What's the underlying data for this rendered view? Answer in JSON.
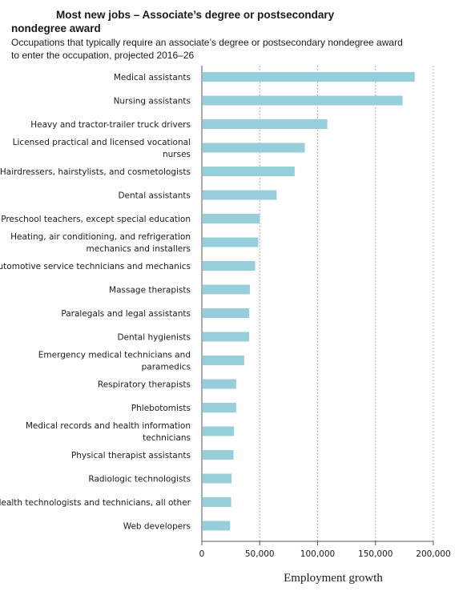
{
  "chart_data": {
    "type": "bar",
    "orientation": "horizontal",
    "title_line1": "Most new jobs – Associate’s degree or postsecondary",
    "title_line2": "nondegree award",
    "subtitle_line1": "Occupations that typically require an associate’s degree or postsecondary nondegree award",
    "subtitle_line2": "to enter the occupation, projected 2016–26",
    "xlabel": "Employment growth",
    "xlim": [
      0,
      200000
    ],
    "xticks": [
      0,
      50000,
      100000,
      150000,
      200000
    ],
    "xtick_labels": [
      "0",
      "50,000",
      "100,000",
      "150,000",
      "200,000"
    ],
    "grid": "vertical dotted",
    "bar_color": "#95cfdc",
    "categories": [
      [
        "Medical assistants"
      ],
      [
        "Nursing assistants"
      ],
      [
        "Heavy and tractor-trailer truck drivers"
      ],
      [
        "Licensed practical and licensed vocational",
        "nurses"
      ],
      [
        "Hairdressers, hairstylists, and cosmetologists"
      ],
      [
        "Dental assistants"
      ],
      [
        "Preschool teachers, except special education"
      ],
      [
        "Heating, air conditioning, and refrigeration",
        "mechanics and installers"
      ],
      [
        "Automotive service technicians and mechanics"
      ],
      [
        "Massage therapists"
      ],
      [
        "Paralegals and legal assistants"
      ],
      [
        "Dental hygienists"
      ],
      [
        "Emergency medical technicians and",
        "paramedics"
      ],
      [
        "Respiratory therapists"
      ],
      [
        "Phlebotomists"
      ],
      [
        "Medical records and health information",
        "technicians"
      ],
      [
        "Physical therapist assistants"
      ],
      [
        "Radiologic technologists"
      ],
      [
        "Health technologists and technicians, all other"
      ],
      [
        "Web developers"
      ]
    ],
    "values": [
      183900,
      173400,
      108400,
      88900,
      80200,
      64600,
      50100,
      48800,
      46100,
      41500,
      41000,
      40900,
      36600,
      29700,
      29700,
      27800,
      27400,
      25700,
      25300,
      24400
    ]
  }
}
